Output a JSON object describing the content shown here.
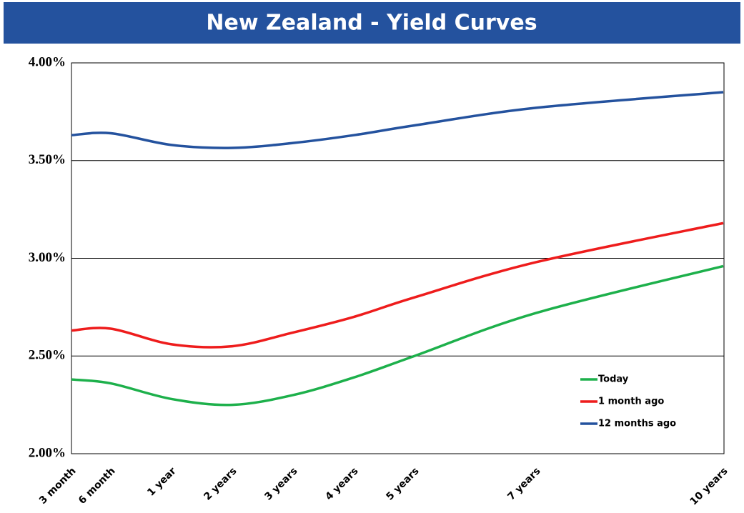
{
  "chart_data": {
    "type": "line",
    "title": "New Zealand - Yield Curves",
    "categories": [
      "3 month",
      "6 month",
      "1 year",
      "2 years",
      "3 years",
      "4 years",
      "5 years",
      "7 years",
      "10 years"
    ],
    "series": [
      {
        "name": "Today",
        "color": "#1db04b",
        "values": [
          2.38,
          2.36,
          2.28,
          2.25,
          2.3,
          2.39,
          2.5,
          2.72,
          2.96
        ]
      },
      {
        "name": "1 month ago",
        "color": "#ee1c1c",
        "values": [
          2.63,
          2.64,
          2.56,
          2.55,
          2.62,
          2.7,
          2.8,
          2.98,
          3.18
        ]
      },
      {
        "name": "12 months ago",
        "color": "#24529e",
        "values": [
          3.63,
          3.64,
          3.58,
          3.565,
          3.59,
          3.63,
          3.68,
          3.77,
          3.85
        ]
      }
    ],
    "ylim": [
      2.0,
      4.0
    ],
    "yticks": [
      {
        "value": 2.0,
        "label": "2.00%"
      },
      {
        "value": 2.5,
        "label": "2.50%"
      },
      {
        "value": 3.0,
        "label": "3.00%"
      },
      {
        "value": 3.5,
        "label": "3.50%"
      },
      {
        "value": 4.0,
        "label": "4.00%"
      }
    ],
    "grid": true,
    "legend": "lower right"
  }
}
